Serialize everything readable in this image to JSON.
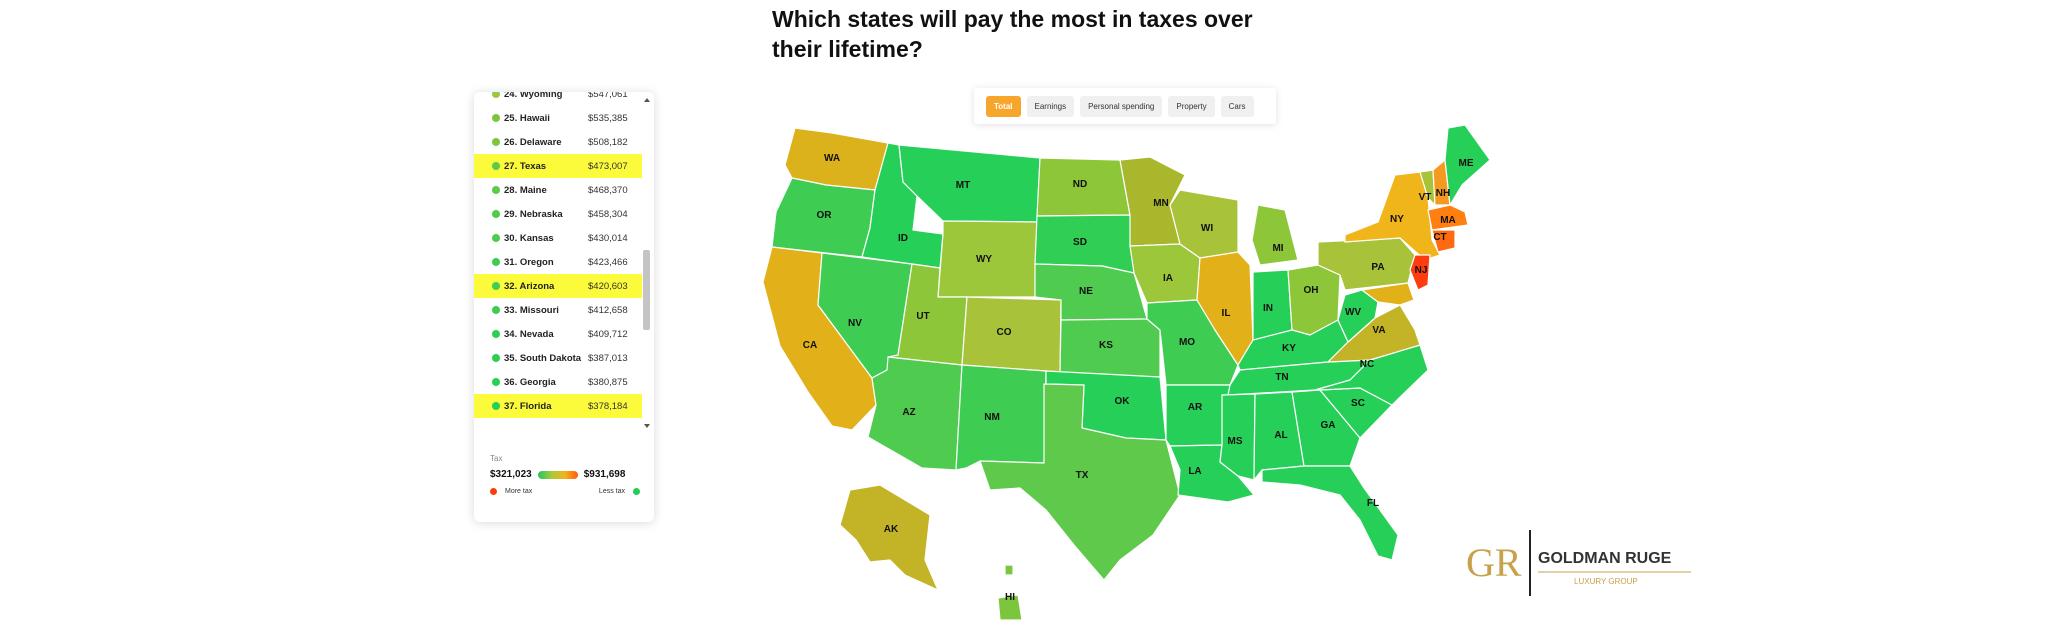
{
  "title": "Which states will pay the most in taxes over their lifetime?",
  "tabs": [
    {
      "label": "Total",
      "active": true
    },
    {
      "label": "Earnings",
      "active": false
    },
    {
      "label": "Personal spending",
      "active": false
    },
    {
      "label": "Property",
      "active": false
    },
    {
      "label": "Cars",
      "active": false
    }
  ],
  "ranking": [
    {
      "label": "24. Wyoming",
      "value": "$547,061",
      "color": "#9cc73a",
      "highlight": false
    },
    {
      "label": "25. Hawaii",
      "value": "$535,385",
      "color": "#7cc63e",
      "highlight": false
    },
    {
      "label": "26. Delaware",
      "value": "$508,182",
      "color": "#7cc63e",
      "highlight": false
    },
    {
      "label": "27. Texas",
      "value": "$473,007",
      "color": "#5ec94a",
      "highlight": true
    },
    {
      "label": "28. Maine",
      "value": "$468,370",
      "color": "#5ec94a",
      "highlight": false
    },
    {
      "label": "29. Nebraska",
      "value": "$458,304",
      "color": "#4fcb4f",
      "highlight": false
    },
    {
      "label": "30. Kansas",
      "value": "$430,014",
      "color": "#4fcb4f",
      "highlight": false
    },
    {
      "label": "31. Oregon",
      "value": "$423,466",
      "color": "#3ecd52",
      "highlight": false
    },
    {
      "label": "32. Arizona",
      "value": "$420,603",
      "color": "#3ecd52",
      "highlight": true
    },
    {
      "label": "33. Missouri",
      "value": "$412,658",
      "color": "#3ecd52",
      "highlight": false
    },
    {
      "label": "34. Nevada",
      "value": "$409,712",
      "color": "#30ce55",
      "highlight": false
    },
    {
      "label": "35. South Dakota",
      "value": "$387,013",
      "color": "#30ce55",
      "highlight": false
    },
    {
      "label": "36. Georgia",
      "value": "$380,875",
      "color": "#26d058",
      "highlight": false
    },
    {
      "label": "37. Florida",
      "value": "$378,184",
      "color": "#26d058",
      "highlight": true
    }
  ],
  "legend": {
    "label": "Tax",
    "min": "$321,023",
    "max": "$931,698",
    "more": "More tax",
    "less": "Less tax",
    "more_color": "#ff3b10",
    "less_color": "#22cc55"
  },
  "map_labels": [
    "WA",
    "OR",
    "CA",
    "NV",
    "ID",
    "MT",
    "WY",
    "UT",
    "AZ",
    "CO",
    "NM",
    "ND",
    "SD",
    "NE",
    "KS",
    "OK",
    "TX",
    "MN",
    "IA",
    "MO",
    "AR",
    "LA",
    "WI",
    "IL",
    "MI",
    "IN",
    "OH",
    "KY",
    "TN",
    "MS",
    "AL",
    "GA",
    "FL",
    "SC",
    "NC",
    "VA",
    "WV",
    "PA",
    "NY",
    "VT",
    "NH",
    "ME",
    "MA",
    "CT",
    "NJ",
    "AK",
    "HI"
  ],
  "logo": {
    "monogram": "GR",
    "name": "GOLDMAN RUGE",
    "tagline": "LUXURY GROUP"
  }
}
